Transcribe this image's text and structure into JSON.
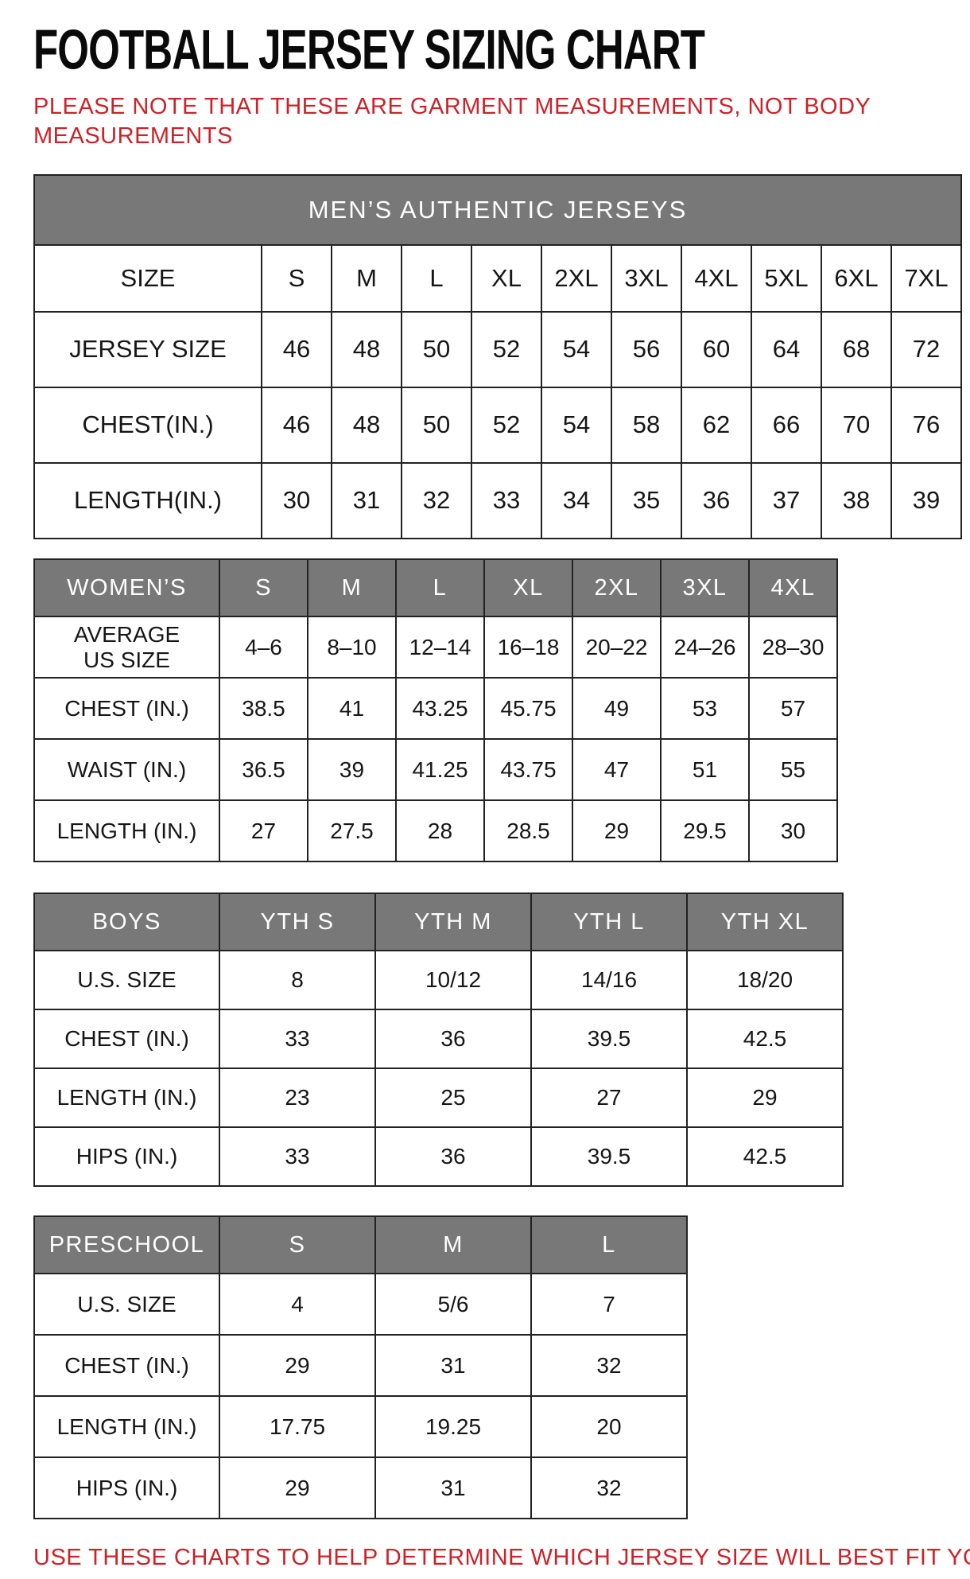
{
  "title": "FOOTBALL JERSEY SIZING CHART",
  "note": "PLEASE NOTE THAT THESE ARE GARMENT MEASUREMENTS, NOT BODY\nMEASUREMENTS",
  "footer": "USE THESE CHARTS TO HELP DETERMINE WHICH JERSEY SIZE WILL BEST FIT YOU.",
  "colors": {
    "accent_red": "#cc2229",
    "header_gray": "#787878",
    "border_dark": "#222222"
  },
  "tables": [
    {
      "id": "mens",
      "banner": "MEN’S AUTHENTIC JERSEYS",
      "columns": [
        "SIZE",
        "S",
        "M",
        "L",
        "XL",
        "2XL",
        "3XL",
        "4XL",
        "5XL",
        "6XL",
        "7XL"
      ],
      "rows": [
        {
          "label": "JERSEY SIZE",
          "values": [
            "46",
            "48",
            "50",
            "52",
            "54",
            "56",
            "60",
            "64",
            "68",
            "72"
          ]
        },
        {
          "label": "CHEST(IN.)",
          "values": [
            "46",
            "48",
            "50",
            "52",
            "54",
            "58",
            "62",
            "66",
            "70",
            "76"
          ]
        },
        {
          "label": "LENGTH(IN.)",
          "values": [
            "30",
            "31",
            "32",
            "33",
            "34",
            "35",
            "36",
            "37",
            "38",
            "39"
          ]
        }
      ]
    },
    {
      "id": "womens",
      "banner": null,
      "columns": [
        "WOMEN’S",
        "S",
        "M",
        "L",
        "XL",
        "2XL",
        "3XL",
        "4XL"
      ],
      "rows": [
        {
          "label": "AVERAGE\nUS SIZE",
          "values": [
            "4–6",
            "8–10",
            "12–14",
            "16–18",
            "20–22",
            "24–26",
            "28–30"
          ]
        },
        {
          "label": "CHEST (IN.)",
          "values": [
            "38.5",
            "41",
            "43.25",
            "45.75",
            "49",
            "53",
            "57"
          ]
        },
        {
          "label": "WAIST (IN.)",
          "values": [
            "36.5",
            "39",
            "41.25",
            "43.75",
            "47",
            "51",
            "55"
          ]
        },
        {
          "label": "LENGTH (IN.)",
          "values": [
            "27",
            "27.5",
            "28",
            "28.5",
            "29",
            "29.5",
            "30"
          ]
        }
      ]
    },
    {
      "id": "boys",
      "banner": null,
      "columns": [
        "BOYS",
        "YTH S",
        "YTH M",
        "YTH L",
        "YTH XL"
      ],
      "rows": [
        {
          "label": "U.S. SIZE",
          "values": [
            "8",
            "10/12",
            "14/16",
            "18/20"
          ]
        },
        {
          "label": "CHEST (IN.)",
          "values": [
            "33",
            "36",
            "39.5",
            "42.5"
          ]
        },
        {
          "label": "LENGTH (IN.)",
          "values": [
            "23",
            "25",
            "27",
            "29"
          ]
        },
        {
          "label": "HIPS (IN.)",
          "values": [
            "33",
            "36",
            "39.5",
            "42.5"
          ]
        }
      ]
    },
    {
      "id": "preschool",
      "banner": null,
      "columns": [
        "PRESCHOOL",
        "S",
        "M",
        "L"
      ],
      "rows": [
        {
          "label": "U.S. SIZE",
          "values": [
            "4",
            "5/6",
            "7"
          ]
        },
        {
          "label": "CHEST (IN.)",
          "values": [
            "29",
            "31",
            "32"
          ]
        },
        {
          "label": "LENGTH (IN.)",
          "values": [
            "17.75",
            "19.25",
            "20"
          ]
        },
        {
          "label": "HIPS (IN.)",
          "values": [
            "29",
            "31",
            "32"
          ]
        }
      ]
    }
  ]
}
